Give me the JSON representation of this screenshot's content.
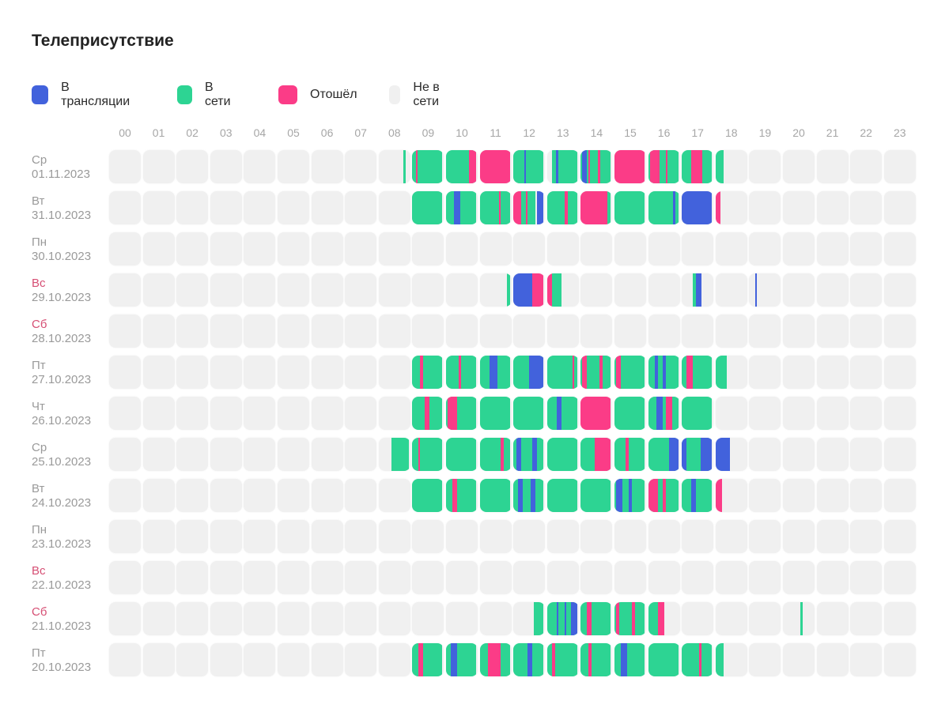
{
  "title": "Телеприсутствие",
  "colors": {
    "broadcast": "#4262dc",
    "online": "#2dd493",
    "away": "#fb3c87",
    "offline": "#f0f0f0"
  },
  "legend": [
    {
      "key": "broadcast",
      "label": "В трансляции"
    },
    {
      "key": "online",
      "label": "В сети"
    },
    {
      "key": "away",
      "label": "Отошёл"
    },
    {
      "key": "offline",
      "label": "Не в сети"
    }
  ],
  "hours": [
    "00",
    "01",
    "02",
    "03",
    "04",
    "05",
    "06",
    "07",
    "08",
    "09",
    "10",
    "11",
    "12",
    "13",
    "14",
    "15",
    "16",
    "17",
    "18",
    "19",
    "20",
    "21",
    "22",
    "23"
  ],
  "days": [
    {
      "name": "Ср",
      "date": "01.11.2023",
      "weekend": false,
      "intervals": [
        [
          "online",
          8.78,
          8.85
        ],
        [
          "online",
          9.0,
          9.95
        ],
        [
          "away",
          9.12,
          9.15
        ],
        [
          "online",
          10.0,
          10.95
        ],
        [
          "away",
          10.72,
          10.95
        ],
        [
          "away",
          11.0,
          11.95
        ],
        [
          "online",
          12.0,
          12.95
        ],
        [
          "broadcast",
          12.35,
          12.38
        ],
        [
          "online",
          13.15,
          13.95
        ],
        [
          "broadcast",
          13.28,
          13.35
        ],
        [
          "online",
          14.0,
          14.95
        ],
        [
          "broadcast",
          14.05,
          14.2
        ],
        [
          "away",
          14.25,
          14.3
        ],
        [
          "away",
          14.55,
          14.62
        ],
        [
          "away",
          15.0,
          15.95
        ],
        [
          "online",
          16.0,
          16.95
        ],
        [
          "away",
          16.05,
          16.35
        ],
        [
          "away",
          16.55,
          16.6
        ],
        [
          "online",
          17.0,
          17.95
        ],
        [
          "away",
          17.3,
          17.65
        ],
        [
          "online",
          18.0,
          18.25
        ]
      ]
    },
    {
      "name": "Вт",
      "date": "31.10.2023",
      "weekend": false,
      "intervals": [
        [
          "online",
          9.0,
          9.95
        ],
        [
          "online",
          10.0,
          10.95
        ],
        [
          "broadcast",
          10.25,
          10.45
        ],
        [
          "online",
          11.0,
          11.95
        ],
        [
          "away",
          11.6,
          11.65
        ],
        [
          "away",
          12.0,
          12.25
        ],
        [
          "online",
          12.25,
          12.7
        ],
        [
          "away",
          12.4,
          12.45
        ],
        [
          "broadcast",
          12.75,
          12.95
        ],
        [
          "online",
          13.0,
          13.95
        ],
        [
          "away",
          13.55,
          13.65
        ],
        [
          "away",
          14.0,
          14.85
        ],
        [
          "online",
          14.85,
          14.95
        ],
        [
          "online",
          15.0,
          15.95
        ],
        [
          "online",
          16.0,
          16.95
        ],
        [
          "broadcast",
          16.78,
          16.85
        ],
        [
          "broadcast",
          17.0,
          17.95
        ],
        [
          "away",
          18.0,
          18.15
        ]
      ]
    },
    {
      "name": "Пн",
      "date": "30.10.2023",
      "weekend": false,
      "intervals": []
    },
    {
      "name": "Вс",
      "date": "29.10.2023",
      "weekend": true,
      "intervals": [
        [
          "online",
          11.85,
          11.95
        ],
        [
          "broadcast",
          12.0,
          12.6
        ],
        [
          "away",
          12.6,
          12.95
        ],
        [
          "away",
          13.0,
          13.15
        ],
        [
          "online",
          13.15,
          13.45
        ],
        [
          "online",
          17.35,
          17.45
        ],
        [
          "broadcast",
          17.45,
          17.62
        ],
        [
          "broadcast",
          19.2,
          19.25
        ]
      ]
    },
    {
      "name": "Сб",
      "date": "28.10.2023",
      "weekend": true,
      "intervals": []
    },
    {
      "name": "Пт",
      "date": "27.10.2023",
      "weekend": false,
      "intervals": [
        [
          "online",
          9.0,
          9.95
        ],
        [
          "away",
          9.25,
          9.35
        ],
        [
          "online",
          10.0,
          10.95
        ],
        [
          "away",
          10.4,
          10.48
        ],
        [
          "online",
          11.0,
          11.95
        ],
        [
          "broadcast",
          11.3,
          11.55
        ],
        [
          "online",
          12.0,
          12.95
        ],
        [
          "broadcast",
          12.5,
          12.95
        ],
        [
          "online",
          13.0,
          13.95
        ],
        [
          "away",
          13.8,
          13.85
        ],
        [
          "online",
          14.0,
          14.95
        ],
        [
          "away",
          14.05,
          14.2
        ],
        [
          "away",
          14.6,
          14.7
        ],
        [
          "online",
          15.0,
          15.95
        ],
        [
          "away",
          15.05,
          15.2
        ],
        [
          "online",
          16.0,
          16.95
        ],
        [
          "broadcast",
          16.2,
          16.3
        ],
        [
          "broadcast",
          16.45,
          16.55
        ],
        [
          "online",
          17.0,
          17.95
        ],
        [
          "away",
          17.15,
          17.35
        ],
        [
          "online",
          18.0,
          18.35
        ]
      ]
    },
    {
      "name": "Чт",
      "date": "26.10.2023",
      "weekend": false,
      "intervals": [
        [
          "online",
          9.0,
          9.95
        ],
        [
          "away",
          9.4,
          9.55
        ],
        [
          "online",
          10.0,
          10.95
        ],
        [
          "away",
          10.05,
          10.35
        ],
        [
          "online",
          11.0,
          11.95
        ],
        [
          "online",
          12.0,
          12.95
        ],
        [
          "online",
          13.0,
          13.95
        ],
        [
          "broadcast",
          13.3,
          13.45
        ],
        [
          "away",
          14.0,
          14.95
        ],
        [
          "online",
          15.0,
          15.95
        ],
        [
          "online",
          16.0,
          16.95
        ],
        [
          "broadcast",
          16.25,
          16.45
        ],
        [
          "away",
          16.55,
          16.75
        ],
        [
          "online",
          17.0,
          17.95
        ]
      ]
    },
    {
      "name": "Ср",
      "date": "25.10.2023",
      "weekend": false,
      "intervals": [
        [
          "online",
          8.4,
          8.95
        ],
        [
          "online",
          9.0,
          9.95
        ],
        [
          "away",
          9.2,
          9.25
        ],
        [
          "online",
          10.0,
          10.95
        ],
        [
          "online",
          11.0,
          11.95
        ],
        [
          "away",
          11.65,
          11.75
        ],
        [
          "online",
          12.0,
          12.95
        ],
        [
          "broadcast",
          12.1,
          12.25
        ],
        [
          "broadcast",
          12.6,
          12.75
        ],
        [
          "online",
          13.0,
          13.95
        ],
        [
          "online",
          14.0,
          14.95
        ],
        [
          "away",
          14.45,
          14.95
        ],
        [
          "online",
          15.0,
          15.95
        ],
        [
          "away",
          15.35,
          15.45
        ],
        [
          "online",
          16.0,
          16.95
        ],
        [
          "broadcast",
          16.65,
          16.95
        ],
        [
          "online",
          17.0,
          17.95
        ],
        [
          "broadcast",
          17.0,
          17.15
        ],
        [
          "broadcast",
          17.6,
          17.95
        ],
        [
          "broadcast",
          18.0,
          18.45
        ]
      ]
    },
    {
      "name": "Вт",
      "date": "24.10.2023",
      "weekend": false,
      "intervals": [
        [
          "online",
          9.0,
          9.95
        ],
        [
          "online",
          10.0,
          10.95
        ],
        [
          "away",
          10.2,
          10.35
        ],
        [
          "online",
          11.0,
          11.95
        ],
        [
          "online",
          12.0,
          12.95
        ],
        [
          "broadcast",
          12.15,
          12.3
        ],
        [
          "broadcast",
          12.55,
          12.7
        ],
        [
          "online",
          13.0,
          13.95
        ],
        [
          "online",
          14.0,
          14.95
        ],
        [
          "online",
          15.0,
          15.95
        ],
        [
          "broadcast",
          15.05,
          15.25
        ],
        [
          "broadcast",
          15.45,
          15.55
        ],
        [
          "online",
          16.0,
          16.95
        ],
        [
          "away",
          16.0,
          16.3
        ],
        [
          "away",
          16.45,
          16.55
        ],
        [
          "online",
          17.0,
          17.95
        ],
        [
          "broadcast",
          17.3,
          17.45
        ],
        [
          "away",
          18.0,
          18.2
        ]
      ]
    },
    {
      "name": "Пн",
      "date": "23.10.2023",
      "weekend": false,
      "intervals": []
    },
    {
      "name": "Вс",
      "date": "22.10.2023",
      "weekend": true,
      "intervals": []
    },
    {
      "name": "Сб",
      "date": "21.10.2023",
      "weekend": true,
      "intervals": [
        [
          "online",
          12.65,
          12.95
        ],
        [
          "online",
          13.0,
          13.95
        ],
        [
          "broadcast",
          13.3,
          13.35
        ],
        [
          "broadcast",
          13.55,
          13.6
        ],
        [
          "broadcast",
          13.75,
          13.95
        ],
        [
          "online",
          14.0,
          14.95
        ],
        [
          "away",
          14.2,
          14.35
        ],
        [
          "online",
          15.0,
          15.95
        ],
        [
          "away",
          15.05,
          15.15
        ],
        [
          "away",
          15.55,
          15.65
        ],
        [
          "online",
          16.0,
          16.5
        ],
        [
          "away",
          16.3,
          16.5
        ],
        [
          "online",
          20.55,
          20.62
        ]
      ]
    },
    {
      "name": "Пт",
      "date": "20.10.2023",
      "weekend": false,
      "intervals": [
        [
          "online",
          9.0,
          9.95
        ],
        [
          "away",
          9.2,
          9.35
        ],
        [
          "online",
          10.0,
          10.95
        ],
        [
          "broadcast",
          10.15,
          10.35
        ],
        [
          "online",
          11.0,
          11.95
        ],
        [
          "away",
          11.25,
          11.65
        ],
        [
          "online",
          12.0,
          12.95
        ],
        [
          "broadcast",
          12.45,
          12.6
        ],
        [
          "online",
          13.0,
          13.95
        ],
        [
          "away",
          13.15,
          13.25
        ],
        [
          "online",
          14.0,
          14.95
        ],
        [
          "away",
          14.25,
          14.35
        ],
        [
          "online",
          15.0,
          15.95
        ],
        [
          "broadcast",
          15.2,
          15.4
        ],
        [
          "online",
          16.0,
          16.95
        ],
        [
          "online",
          17.0,
          17.95
        ],
        [
          "away",
          17.55,
          17.62
        ],
        [
          "online",
          18.0,
          18.25
        ]
      ]
    }
  ]
}
